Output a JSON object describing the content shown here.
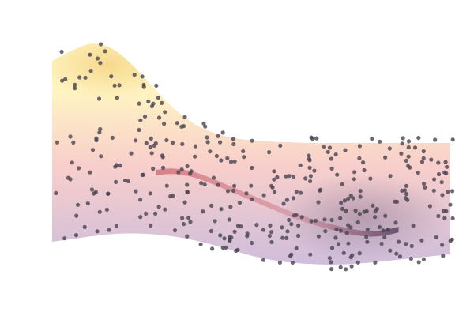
{
  "chart_data": {
    "type": "area",
    "title": "",
    "xlabel": "",
    "ylabel": "",
    "grid": false,
    "legend": "none",
    "axes_visible": false,
    "description_note": "",
    "surface": {
      "x": [
        0.0,
        0.05,
        0.1,
        0.15,
        0.2,
        0.25,
        0.3,
        0.35,
        0.4,
        0.45,
        0.5,
        0.55,
        0.6,
        0.65,
        0.7,
        0.75,
        0.8,
        0.85,
        0.9,
        0.95,
        1.0
      ],
      "top": [
        2.6,
        2.75,
        2.85,
        2.78,
        2.55,
        2.25,
        1.95,
        1.72,
        1.58,
        1.5,
        1.46,
        1.44,
        1.43,
        1.42,
        1.42,
        1.42,
        1.42,
        1.42,
        1.42,
        1.42,
        1.42
      ],
      "bottom": [
        0.0,
        0.04,
        0.08,
        0.11,
        0.12,
        0.11,
        0.08,
        0.03,
        -0.04,
        -0.12,
        -0.2,
        -0.26,
        -0.3,
        -0.32,
        -0.33,
        -0.32,
        -0.3,
        -0.27,
        -0.24,
        -0.21,
        -0.18
      ]
    },
    "ridge": {
      "x": [
        0.26,
        0.3,
        0.35,
        0.4,
        0.45,
        0.5,
        0.55,
        0.6,
        0.65,
        0.7,
        0.75,
        0.8,
        0.84,
        0.87
      ],
      "y": [
        1.0,
        1.02,
        0.98,
        0.88,
        0.76,
        0.64,
        0.52,
        0.4,
        0.3,
        0.22,
        0.15,
        0.12,
        0.14,
        0.18
      ]
    },
    "colormap": {
      "low": "#2e1f45",
      "mid_low": "#c6b2d4",
      "mid": "#f7c6c2",
      "high": "#fff2b8",
      "peak": "#f2c76a",
      "accent": "#c25563"
    },
    "points_style": {
      "color": "#4a4450"
    },
    "points_count": 375,
    "points_seed": 42
  }
}
